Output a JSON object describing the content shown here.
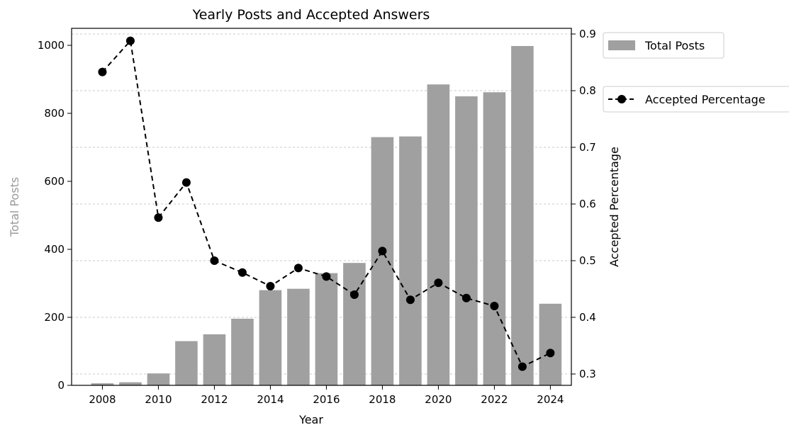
{
  "chart_data": {
    "type": "bar",
    "title": "Yearly Posts and Accepted Answers",
    "xlabel": "Year",
    "ylabel": "Total Posts",
    "y2label": "Accepted Percentage",
    "categories": [
      2008,
      2009,
      2010,
      2011,
      2012,
      2013,
      2014,
      2015,
      2016,
      2017,
      2018,
      2019,
      2020,
      2021,
      2022,
      2023,
      2024
    ],
    "x_ticks": [
      "2008",
      "2010",
      "2012",
      "2014",
      "2016",
      "2018",
      "2020",
      "2022",
      "2024"
    ],
    "x_tick_values": [
      2008,
      2010,
      2012,
      2014,
      2016,
      2018,
      2020,
      2022,
      2024
    ],
    "y_ticks": [
      "0",
      "200",
      "400",
      "600",
      "800",
      "1000"
    ],
    "y_tick_values": [
      0,
      200,
      400,
      600,
      800,
      1000
    ],
    "y2_ticks": [
      "0.3",
      "0.4",
      "0.5",
      "0.6",
      "0.7",
      "0.8",
      "0.9"
    ],
    "y2_tick_values": [
      0.3,
      0.4,
      0.5,
      0.6,
      0.7,
      0.8,
      0.9
    ],
    "ylim": [
      0,
      1050
    ],
    "y2lim": [
      0.28,
      0.91
    ],
    "xlim": [
      2006.9,
      2024.75
    ],
    "grid": "horizontal dotted at right-axis ticks",
    "series": [
      {
        "name": "Total Posts",
        "type": "bar",
        "axis": "left",
        "color": "#a0a0a0",
        "values": [
          6,
          9,
          35,
          130,
          150,
          196,
          280,
          284,
          330,
          360,
          730,
          732,
          885,
          850,
          862,
          998,
          240
        ]
      },
      {
        "name": "Accepted Percentage",
        "type": "line",
        "axis": "right",
        "color": "#000000",
        "line_style": "dashed",
        "marker": "circle",
        "values": [
          0.833,
          0.888,
          0.576,
          0.638,
          0.5,
          0.479,
          0.455,
          0.487,
          0.472,
          0.44,
          0.517,
          0.431,
          0.461,
          0.434,
          0.42,
          0.313,
          0.337
        ]
      }
    ],
    "legend": [
      {
        "label": "Total Posts",
        "placement": "upper right, outside plot"
      },
      {
        "label": "Accepted Percentage",
        "placement": "right, outside plot"
      }
    ]
  }
}
